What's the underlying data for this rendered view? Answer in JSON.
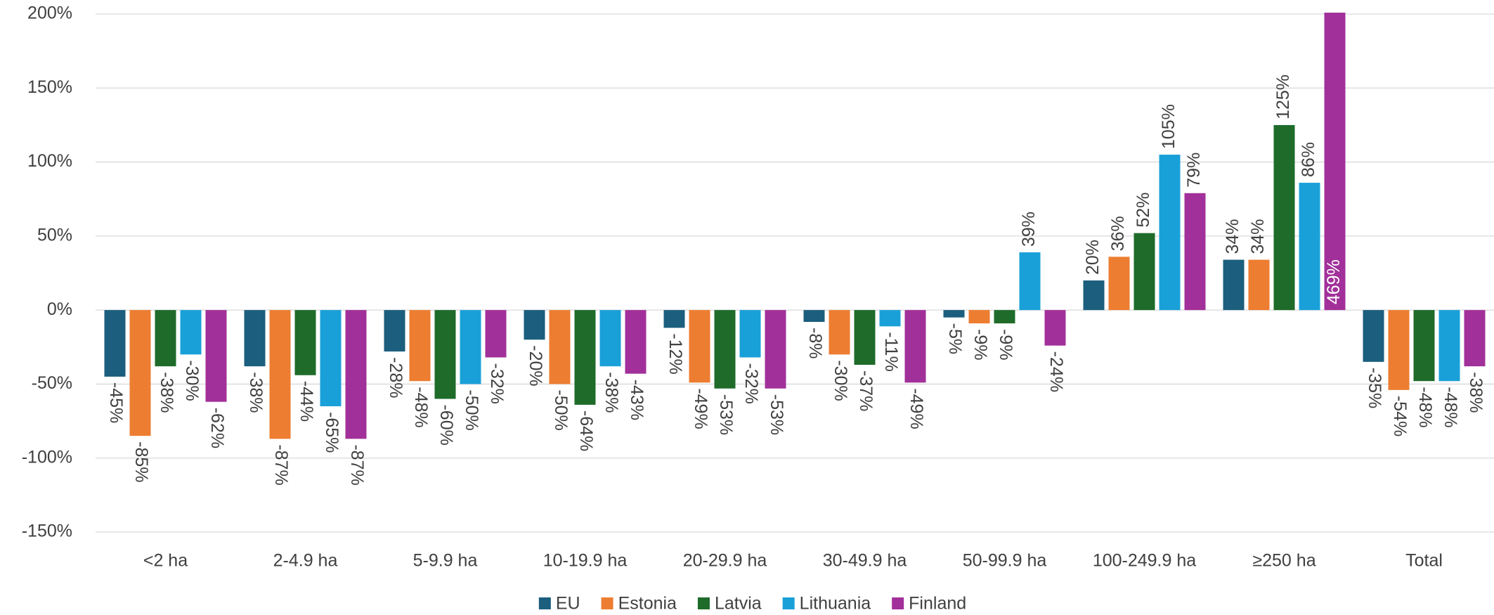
{
  "chart_data": {
    "type": "bar",
    "categories": [
      "<2 ha",
      "2-4.9 ha",
      "5-9.9 ha",
      "10-19.9 ha",
      "20-29.9 ha",
      "30-49.9 ha",
      "50-99.9 ha",
      "100-249.9 ha",
      "≥250 ha",
      "Total"
    ],
    "series": [
      {
        "name": "EU",
        "color": "#1b5e7e",
        "values": [
          -45,
          -38,
          -28,
          -20,
          -12,
          -8,
          -5,
          20,
          34,
          -35
        ],
        "value_labels": [
          "-45%",
          "-38%",
          "-28%",
          "-20%",
          "-12%",
          "-8%",
          "-5%",
          "20%",
          "34%",
          "-35%"
        ]
      },
      {
        "name": "Estonia",
        "color": "#ed7d31",
        "values": [
          -85,
          -87,
          -48,
          -50,
          -49,
          -30,
          -9,
          36,
          34,
          -54
        ],
        "value_labels": [
          "-85%",
          "-87%",
          "-48%",
          "-50%",
          "-49%",
          "-30%",
          "-9%",
          "36%",
          "34%",
          "-54%"
        ]
      },
      {
        "name": "Latvia",
        "color": "#1e6b2a",
        "values": [
          -38,
          -44,
          -60,
          -64,
          -53,
          -37,
          -9,
          52,
          125,
          -48
        ],
        "value_labels": [
          "-38%",
          "-44%",
          "-60%",
          "-64%",
          "-53%",
          "-37%",
          "-9%",
          "52%",
          "125%",
          "-48%"
        ]
      },
      {
        "name": "Lithuania",
        "color": "#1aa0d8",
        "values": [
          -30,
          -65,
          -50,
          -38,
          -32,
          -11,
          39,
          105,
          86,
          -48
        ],
        "value_labels": [
          "-30%",
          "-65%",
          "-50%",
          "-38%",
          "-32%",
          "-11%",
          "39%",
          "105%",
          "86%",
          "-48%"
        ]
      },
      {
        "name": "Finland",
        "color": "#a2309a",
        "values": [
          -62,
          -87,
          -32,
          -43,
          -53,
          -49,
          -24,
          79,
          469,
          -38
        ],
        "value_labels": [
          "-62%",
          "-87%",
          "-32%",
          "-43%",
          "-53%",
          "-49%",
          "-24%",
          "79%",
          "469%",
          "-38%"
        ]
      }
    ],
    "ylim": [
      -150,
      200
    ],
    "yticks": [
      {
        "value": -150,
        "label": "-150%"
      },
      {
        "value": -100,
        "label": "-100%"
      },
      {
        "value": -50,
        "label": "-50%"
      },
      {
        "value": 0,
        "label": "0%"
      },
      {
        "value": 50,
        "label": "50%"
      },
      {
        "value": 100,
        "label": "100%"
      },
      {
        "value": 150,
        "label": "150%"
      },
      {
        "value": 200,
        "label": "200%"
      }
    ],
    "grid": true,
    "legend": "bottom"
  }
}
